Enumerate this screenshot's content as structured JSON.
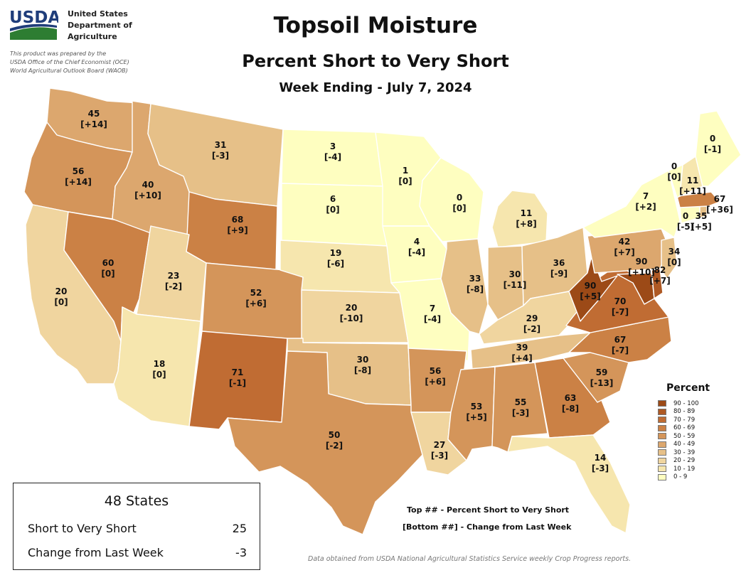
{
  "header": {
    "logo_text": "USDA",
    "agency_lines": [
      "United States",
      "Department of",
      "Agriculture"
    ],
    "credit_lines": [
      "This product was prepared by the",
      "USDA Office of the Chief Economist (OCE)",
      "World Agricultural Outlook Board (WAOB)"
    ],
    "title": "Topsoil Moisture",
    "subtitle": "Percent Short to Very Short",
    "week": "Week Ending - July 7, 2024"
  },
  "legend": {
    "title": "Percent",
    "classes": [
      {
        "label": "90 - 100",
        "color": "#9c4a17"
      },
      {
        "label": "80 - 89",
        "color": "#ae5924"
      },
      {
        "label": "70 - 79",
        "color": "#c06c33"
      },
      {
        "label": "60 - 69",
        "color": "#cb8145"
      },
      {
        "label": "50 - 59",
        "color": "#d4955a"
      },
      {
        "label": "40 - 49",
        "color": "#dca76e"
      },
      {
        "label": "30 - 39",
        "color": "#e6c088"
      },
      {
        "label": "20 - 29",
        "color": "#f0d59f"
      },
      {
        "label": "10 - 19",
        "color": "#f6e6ae"
      },
      {
        "label": "0 - 9",
        "color": "#fefec0"
      }
    ]
  },
  "states": {
    "WA": {
      "value": "45",
      "change": "[+14]"
    },
    "OR": {
      "value": "56",
      "change": "[+14]"
    },
    "CA": {
      "value": "20",
      "change": "[0]"
    },
    "NV": {
      "value": "60",
      "change": "[0]"
    },
    "ID": {
      "value": "40",
      "change": "[+10]"
    },
    "MT": {
      "value": "31",
      "change": "[-3]"
    },
    "WY": {
      "value": "68",
      "change": "[+9]"
    },
    "UT": {
      "value": "23",
      "change": "[-2]"
    },
    "AZ": {
      "value": "18",
      "change": "[0]"
    },
    "CO": {
      "value": "52",
      "change": "[+6]"
    },
    "NM": {
      "value": "71",
      "change": "[-1]"
    },
    "ND": {
      "value": "3",
      "change": "[-4]"
    },
    "SD": {
      "value": "6",
      "change": "[0]"
    },
    "NE": {
      "value": "19",
      "change": "[-6]"
    },
    "KS": {
      "value": "20",
      "change": "[-10]"
    },
    "OK": {
      "value": "30",
      "change": "[-8]"
    },
    "TX": {
      "value": "50",
      "change": "[-2]"
    },
    "MN": {
      "value": "1",
      "change": "[0]"
    },
    "IA": {
      "value": "4",
      "change": "[-4]"
    },
    "MO": {
      "value": "7",
      "change": "[-4]"
    },
    "AR": {
      "value": "56",
      "change": "[+6]"
    },
    "LA": {
      "value": "27",
      "change": "[-3]"
    },
    "WI": {
      "value": "0",
      "change": "[0]"
    },
    "IL": {
      "value": "33",
      "change": "[-8]"
    },
    "MI": {
      "value": "11",
      "change": "[+8]"
    },
    "IN": {
      "value": "30",
      "change": "[-11]"
    },
    "OH": {
      "value": "36",
      "change": "[-9]"
    },
    "KY": {
      "value": "29",
      "change": "[-2]"
    },
    "TN": {
      "value": "39",
      "change": "[+4]"
    },
    "MS": {
      "value": "53",
      "change": "[+5]"
    },
    "AL": {
      "value": "55",
      "change": "[-3]"
    },
    "GA": {
      "value": "63",
      "change": "[-8]"
    },
    "FL": {
      "value": "14",
      "change": "[-3]"
    },
    "SC": {
      "value": "59",
      "change": "[-13]"
    },
    "NC": {
      "value": "67",
      "change": "[-7]"
    },
    "VA": {
      "value": "70",
      "change": "[-7]"
    },
    "WV": {
      "value": "90",
      "change": "[+5]"
    },
    "PA": {
      "value": "42",
      "change": "[+7]"
    },
    "MD": {
      "value": "90",
      "change": "[+10]"
    },
    "DE": {
      "value": "82",
      "change": "[+7]"
    },
    "NJ": {
      "value": "34",
      "change": "[0]"
    },
    "NY": {
      "value": "7",
      "change": "[+2]"
    },
    "CT": {
      "value": "0",
      "change": "[-5]"
    },
    "RI": {
      "value": "35",
      "change": "[+5]"
    },
    "MA": {
      "value": "67",
      "change": "[+36]"
    },
    "VT": {
      "value": "0",
      "change": "[0]"
    },
    "NH": {
      "value": "11",
      "change": "[+11]"
    },
    "ME": {
      "value": "0",
      "change": "[-1]"
    }
  },
  "summary": {
    "title": "48 States",
    "rows": [
      {
        "label": "Short to Very Short",
        "value": "25"
      },
      {
        "label": "Change from Last Week",
        "value": "-3"
      }
    ]
  },
  "key": {
    "top": "Top ## - Percent Short to Very Short",
    "bottom": "[Bottom ##] - Change from Last Week"
  },
  "source": "Data obtained from USDA National Agricultural Statistics Service weekly Crop Progress reports."
}
